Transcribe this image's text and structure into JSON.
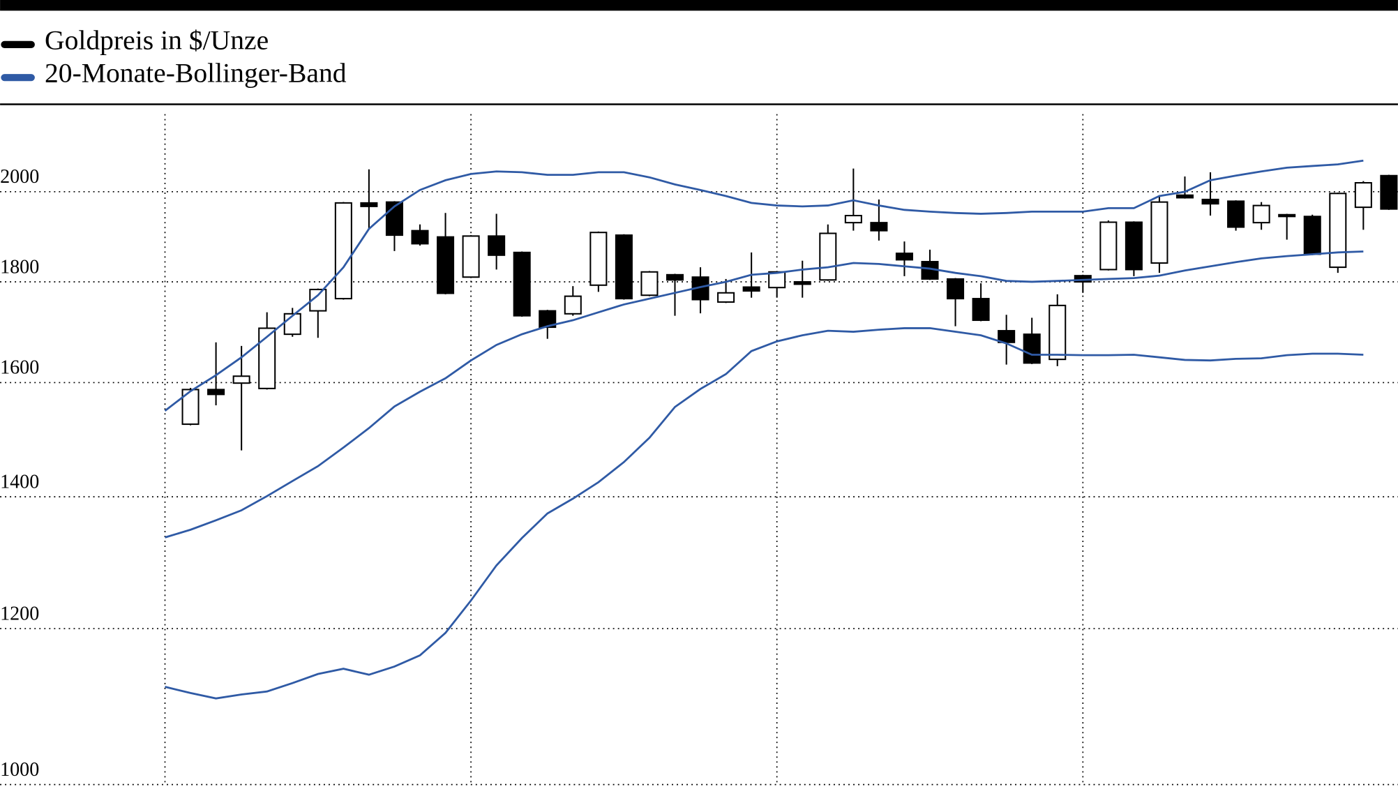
{
  "chart_data": {
    "type": "candlestick",
    "log_scale": true,
    "grid": true,
    "categories": [
      null,
      null,
      null,
      null,
      null,
      null,
      null,
      null,
      null,
      null,
      null,
      null,
      null,
      null,
      null,
      null,
      null,
      null,
      null,
      null,
      null,
      null,
      null,
      null,
      null,
      null,
      null,
      null,
      null,
      null,
      null,
      null,
      null,
      null,
      null,
      null,
      null,
      null,
      null,
      null,
      null,
      null,
      null,
      null,
      null,
      null,
      null,
      null,
      null
    ],
    "ylim": [
      1000,
      2190
    ],
    "yticks": [
      1000,
      1200,
      1400,
      1600,
      1800,
      2000
    ],
    "series": [
      {
        "name": "Goldpreis in $/Unze",
        "color": "#000000",
        "open": [
          null,
          1524,
          1587,
          1599,
          1589,
          1693,
          1740,
          1765,
          1974,
          1976,
          1911,
          1897,
          1810,
          1899,
          1863,
          1740,
          1734,
          1793,
          1901,
          1772,
          1815,
          1810,
          1758,
          1789,
          1788,
          1800,
          1804,
          1929,
          1929,
          1861,
          1843,
          1806,
          1765,
          1700,
          1693,
          1644,
          1813,
          1826,
          1930,
          1840,
          1992,
          1982,
          1978,
          1929,
          1947,
          1943,
          1831,
          1964,
          2038
        ],
        "high": [
          null,
          1590,
          1677,
          1670,
          1737,
          1746,
          1786,
          1976,
          2053,
          1978,
          1925,
          1951,
          1901,
          1949,
          1865,
          1742,
          1791,
          1909,
          1903,
          1823,
          1817,
          1831,
          1806,
          1863,
          1823,
          1845,
          1925,
          2055,
          1982,
          1887,
          1869,
          1808,
          1797,
          1732,
          1726,
          1774,
          1815,
          1934,
          1932,
          1992,
          2036,
          2046,
          1980,
          1976,
          1949,
          1947,
          1998,
          2025,
          2040
        ],
        "low": [
          null,
          1522,
          1558,
          1478,
          1587,
          1688,
          1686,
          1763,
          1916,
          1866,
          1878,
          1774,
          1808,
          1826,
          1728,
          1684,
          1730,
          1779,
          1763,
          1770,
          1730,
          1735,
          1756,
          1767,
          1767,
          1767,
          1802,
          1911,
          1889,
          1812,
          1804,
          1709,
          1719,
          1634,
          1635,
          1631,
          1777,
          1824,
          1812,
          1819,
          1984,
          1945,
          1911,
          1913,
          1891,
          1857,
          1819,
          1913,
          1958
        ],
        "close": [
          null,
          1587,
          1578,
          1612,
          1705,
          1734,
          1784,
          1974,
          1966,
          1901,
          1882,
          1776,
          1899,
          1857,
          1730,
          1707,
          1770,
          1907,
          1765,
          1821,
          1804,
          1763,
          1777,
          1781,
          1821,
          1795,
          1905,
          1945,
          1911,
          1847,
          1806,
          1765,
          1721,
          1677,
          1637,
          1751,
          1800,
          1930,
          1826,
          1976,
          1986,
          1972,
          1919,
          1968,
          1943,
          1859,
          1996,
          2021,
          1960
        ]
      },
      {
        "name": "20-Monate-Bollinger-Band",
        "color": "#2f5aa5",
        "type": "line",
        "upper": [
          1548,
          1584,
          1614,
          1648,
          1688,
          1730,
          1772,
          1831,
          1915,
          1966,
          2004,
          2027,
          2042,
          2048,
          2046,
          2040,
          2040,
          2046,
          2046,
          2034,
          2017,
          2004,
          1990,
          1974,
          1968,
          1966,
          1968,
          1980,
          1968,
          1958,
          1954,
          1951,
          1949,
          1951,
          1954,
          1954,
          1954,
          1962,
          1962,
          1990,
          2000,
          2027,
          2038,
          2048,
          2057,
          2061,
          2065,
          2074,
          null
        ],
        "middle": [
          1335,
          1347,
          1362,
          1378,
          1401,
          1426,
          1451,
          1483,
          1517,
          1556,
          1583,
          1608,
          1642,
          1672,
          1693,
          1709,
          1721,
          1737,
          1753,
          1765,
          1777,
          1789,
          1800,
          1815,
          1819,
          1826,
          1831,
          1840,
          1838,
          1833,
          1828,
          1819,
          1812,
          1802,
          1800,
          1802,
          1804,
          1806,
          1808,
          1813,
          1824,
          1833,
          1842,
          1850,
          1855,
          1859,
          1863,
          1865,
          null
        ],
        "lower": [
          1121,
          1113,
          1106,
          1111,
          1115,
          1126,
          1138,
          1145,
          1137,
          1148,
          1163,
          1194,
          1240,
          1292,
          1334,
          1373,
          1397,
          1424,
          1458,
          1500,
          1555,
          1588,
          1616,
          1660,
          1679,
          1691,
          1700,
          1698,
          1702,
          1705,
          1705,
          1698,
          1691,
          1675,
          1653,
          1653,
          1652,
          1652,
          1653,
          1648,
          1643,
          1642,
          1645,
          1646,
          1652,
          1655,
          1655,
          1653,
          null
        ]
      }
    ]
  }
}
